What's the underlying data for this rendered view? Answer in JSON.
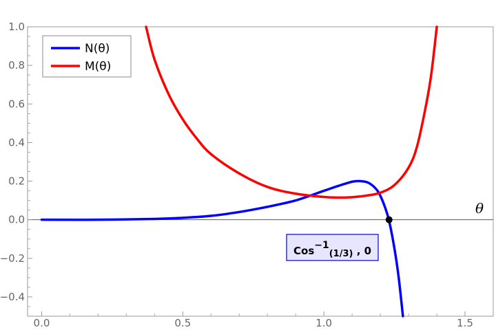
{
  "chart_data": {
    "type": "line",
    "xlim": [
      -0.05,
      1.6
    ],
    "ylim": [
      -0.5,
      1.0
    ],
    "x_ticks": [
      "0.0",
      "0.5",
      "1.0",
      "1.5"
    ],
    "y_ticks": [
      "1.0",
      "0.8",
      "0.6",
      "0.4",
      "0.2",
      "0.0",
      "−0.2",
      "−0.4"
    ],
    "axis_label_x": "θ",
    "grid": false,
    "legend_position": "top-left",
    "series": [
      {
        "name": "N(θ)",
        "color": "#0000ff",
        "x": [
          0.0,
          0.2,
          0.4,
          0.5,
          0.6,
          0.7,
          0.8,
          0.9,
          1.0,
          1.05,
          1.1,
          1.13,
          1.16,
          1.19,
          1.21,
          1.23,
          1.25,
          1.265,
          1.28
        ],
        "y": [
          0.0,
          0.0,
          0.004,
          0.01,
          0.02,
          0.04,
          0.067,
          0.1,
          0.15,
          0.175,
          0.197,
          0.2,
          0.19,
          0.15,
          0.09,
          0.0,
          -0.15,
          -0.3,
          -0.5
        ]
      },
      {
        "name": "M(θ)",
        "color": "#ff0000",
        "x": [
          0.37,
          0.4,
          0.45,
          0.5,
          0.55,
          0.6,
          0.7,
          0.8,
          0.9,
          1.0,
          1.05,
          1.1,
          1.15,
          1.2,
          1.25,
          1.3,
          1.33,
          1.36,
          1.38,
          1.4
        ],
        "y": [
          1.0,
          0.83,
          0.65,
          0.52,
          0.42,
          0.34,
          0.24,
          0.17,
          0.135,
          0.118,
          0.115,
          0.117,
          0.125,
          0.14,
          0.18,
          0.27,
          0.38,
          0.58,
          0.75,
          1.0
        ]
      }
    ],
    "point": {
      "x": 1.2309,
      "y": 0.0,
      "color": "#000000"
    },
    "annotation": {
      "base": "Cos",
      "superscript": "−1",
      "subscript": "(1/3)",
      "suffix": " , 0",
      "background": "#e6e6ff",
      "border": "#0000cc"
    }
  }
}
